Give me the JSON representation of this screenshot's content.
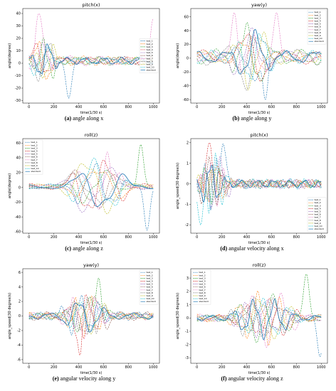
{
  "series_names": [
    "test_1",
    "test_2",
    "test_3",
    "test_4",
    "test_5",
    "test_6",
    "test_7",
    "test_8",
    "test_9",
    "test_10",
    "standard"
  ],
  "series_colors": [
    "#1f77b4",
    "#ff7f0e",
    "#2ca02c",
    "#d62728",
    "#9467bd",
    "#8c564b",
    "#e377c2",
    "#7f7f7f",
    "#bcbd22",
    "#17becf",
    "#1f77b4"
  ],
  "panels": [
    {
      "caption_label": "(a)",
      "caption_text": "angle along x",
      "chart_data": {
        "type": "line",
        "title": "pitch(x)",
        "xlabel": "time(1/30 s)",
        "ylabel": "angle(degree)",
        "xlim": [
          -50,
          1050
        ],
        "ylim": [
          -32,
          44
        ],
        "xticks": [
          0,
          200,
          400,
          600,
          800,
          1000
        ],
        "yticks": [
          -30,
          -20,
          -10,
          0,
          10,
          20,
          30,
          40
        ],
        "legend": "center-right",
        "active_start": 0,
        "active_end": 300,
        "active_amp": 22,
        "rest_amp": 4,
        "cycles": 1.6,
        "baseline": 2,
        "series": [
          {
            "name": "test_1",
            "peak_points": [
              [
                320,
                -28
              ]
            ]
          },
          {
            "name": "test_7",
            "peak_points": [
              [
                80,
                40
              ],
              [
                1000,
                36
              ]
            ]
          }
        ]
      }
    },
    {
      "caption_label": "(b)",
      "caption_text": "angle along y",
      "chart_data": {
        "type": "line",
        "title": "yaw(y)",
        "xlabel": "time(1/30 s)",
        "ylabel": "angle(degree)",
        "xlim": [
          -50,
          1050
        ],
        "ylim": [
          -65,
          72
        ],
        "xticks": [
          0,
          200,
          400,
          600,
          800,
          1000
        ],
        "yticks": [
          -60,
          -40,
          -20,
          0,
          20,
          40,
          60
        ],
        "legend": "top-right",
        "active_start": 250,
        "active_end": 720,
        "active_amp": 55,
        "rest_amp": 12,
        "cycles": 1.8,
        "baseline": 2,
        "series": [
          {
            "name": "test_7",
            "peak_points": [
              [
                300,
                66
              ],
              [
                640,
                66
              ]
            ]
          },
          {
            "name": "test_1",
            "peak_points": [
              [
                550,
                -60
              ]
            ]
          }
        ]
      }
    },
    {
      "caption_label": "(c)",
      "caption_text": "angle along z",
      "chart_data": {
        "type": "line",
        "title": "roll(z)",
        "xlabel": "time(1/30 s)",
        "ylabel": "angle(degree)",
        "xlim": [
          -50,
          1050
        ],
        "ylim": [
          -62,
          66
        ],
        "xticks": [
          0,
          200,
          400,
          600,
          800,
          1000
        ],
        "yticks": [
          -60,
          -40,
          -20,
          0,
          20,
          40,
          60
        ],
        "legend": "top-left",
        "active_start": 250,
        "active_end": 1000,
        "active_amp": 45,
        "rest_amp": 4,
        "cycles": 1.9,
        "baseline": 1,
        "series": [
          {
            "name": "test_7",
            "peak_points": [
              [
                630,
                48
              ]
            ]
          },
          {
            "name": "test_3",
            "peak_points": [
              [
                900,
                58
              ]
            ]
          },
          {
            "name": "test_1",
            "peak_points": [
              [
                950,
                -58
              ]
            ]
          }
        ]
      }
    },
    {
      "caption_label": "(d)",
      "caption_text": "angular velocity along x",
      "chart_data": {
        "type": "line",
        "title": "pitch(x)",
        "xlabel": "time(1/30 s)",
        "ylabel": "angle_speed(30 degree/s)",
        "xlim": [
          -50,
          1050
        ],
        "ylim": [
          -2.4,
          2.2
        ],
        "xticks": [
          0,
          200,
          400,
          600,
          800,
          1000
        ],
        "yticks": [
          -2,
          -1,
          0,
          1,
          2
        ],
        "legend": "bottom-right",
        "active_start": 0,
        "active_end": 350,
        "active_amp": 1.5,
        "rest_amp": 0.25,
        "cycles": 3.2,
        "baseline": 0,
        "series": [
          {
            "name": "test_1",
            "peak_points": [
              [
                210,
                1.95
              ]
            ]
          },
          {
            "name": "test_4",
            "peak_points": [
              [
                100,
                2.0
              ]
            ]
          },
          {
            "name": "test_10",
            "peak_points": [
              [
                30,
                -2.0
              ]
            ]
          }
        ]
      }
    },
    {
      "caption_label": "(e)",
      "caption_text": "angular velocity along y",
      "chart_data": {
        "type": "line",
        "title": "yaw(y)",
        "xlabel": "time(1/30 s)",
        "ylabel": "angle_speed(30 degree/s)",
        "xlim": [
          -50,
          1050
        ],
        "ylim": [
          -6.5,
          6.5
        ],
        "xticks": [
          0,
          200,
          400,
          600,
          800,
          1000
        ],
        "yticks": [
          -6,
          -4,
          -2,
          0,
          2,
          4,
          6
        ],
        "legend": "top-right",
        "active_start": 250,
        "active_end": 800,
        "active_amp": 3.5,
        "rest_amp": 0.6,
        "cycles": 3.2,
        "baseline": 0,
        "series": [
          {
            "name": "test_4",
            "peak_points": [
              [
                430,
                5.8
              ],
              [
                410,
                -5.4
              ]
            ]
          },
          {
            "name": "test_3",
            "peak_points": [
              [
                560,
                5.2
              ]
            ]
          }
        ]
      }
    },
    {
      "caption_label": "(f)",
      "caption_text": "angular velocity along z",
      "chart_data": {
        "type": "line",
        "title": "roll(z)",
        "xlabel": "time(1/30 s)",
        "ylabel": "angle_speed(30 degree/s)",
        "xlim": [
          -50,
          1050
        ],
        "ylim": [
          -3.4,
          3.7
        ],
        "xticks": [
          0,
          200,
          400,
          600,
          800,
          1000
        ],
        "yticks": [
          -3,
          -2,
          -1,
          0,
          1,
          2,
          3
        ],
        "legend": "top-left",
        "active_start": 250,
        "active_end": 1000,
        "active_amp": 2.2,
        "rest_amp": 0.3,
        "cycles": 3.6,
        "baseline": 0,
        "series": [
          {
            "name": "test_3",
            "peak_points": [
              [
                880,
                3.3
              ]
            ]
          },
          {
            "name": "test_1",
            "peak_points": [
              [
                990,
                -2.9
              ]
            ]
          }
        ]
      }
    }
  ]
}
